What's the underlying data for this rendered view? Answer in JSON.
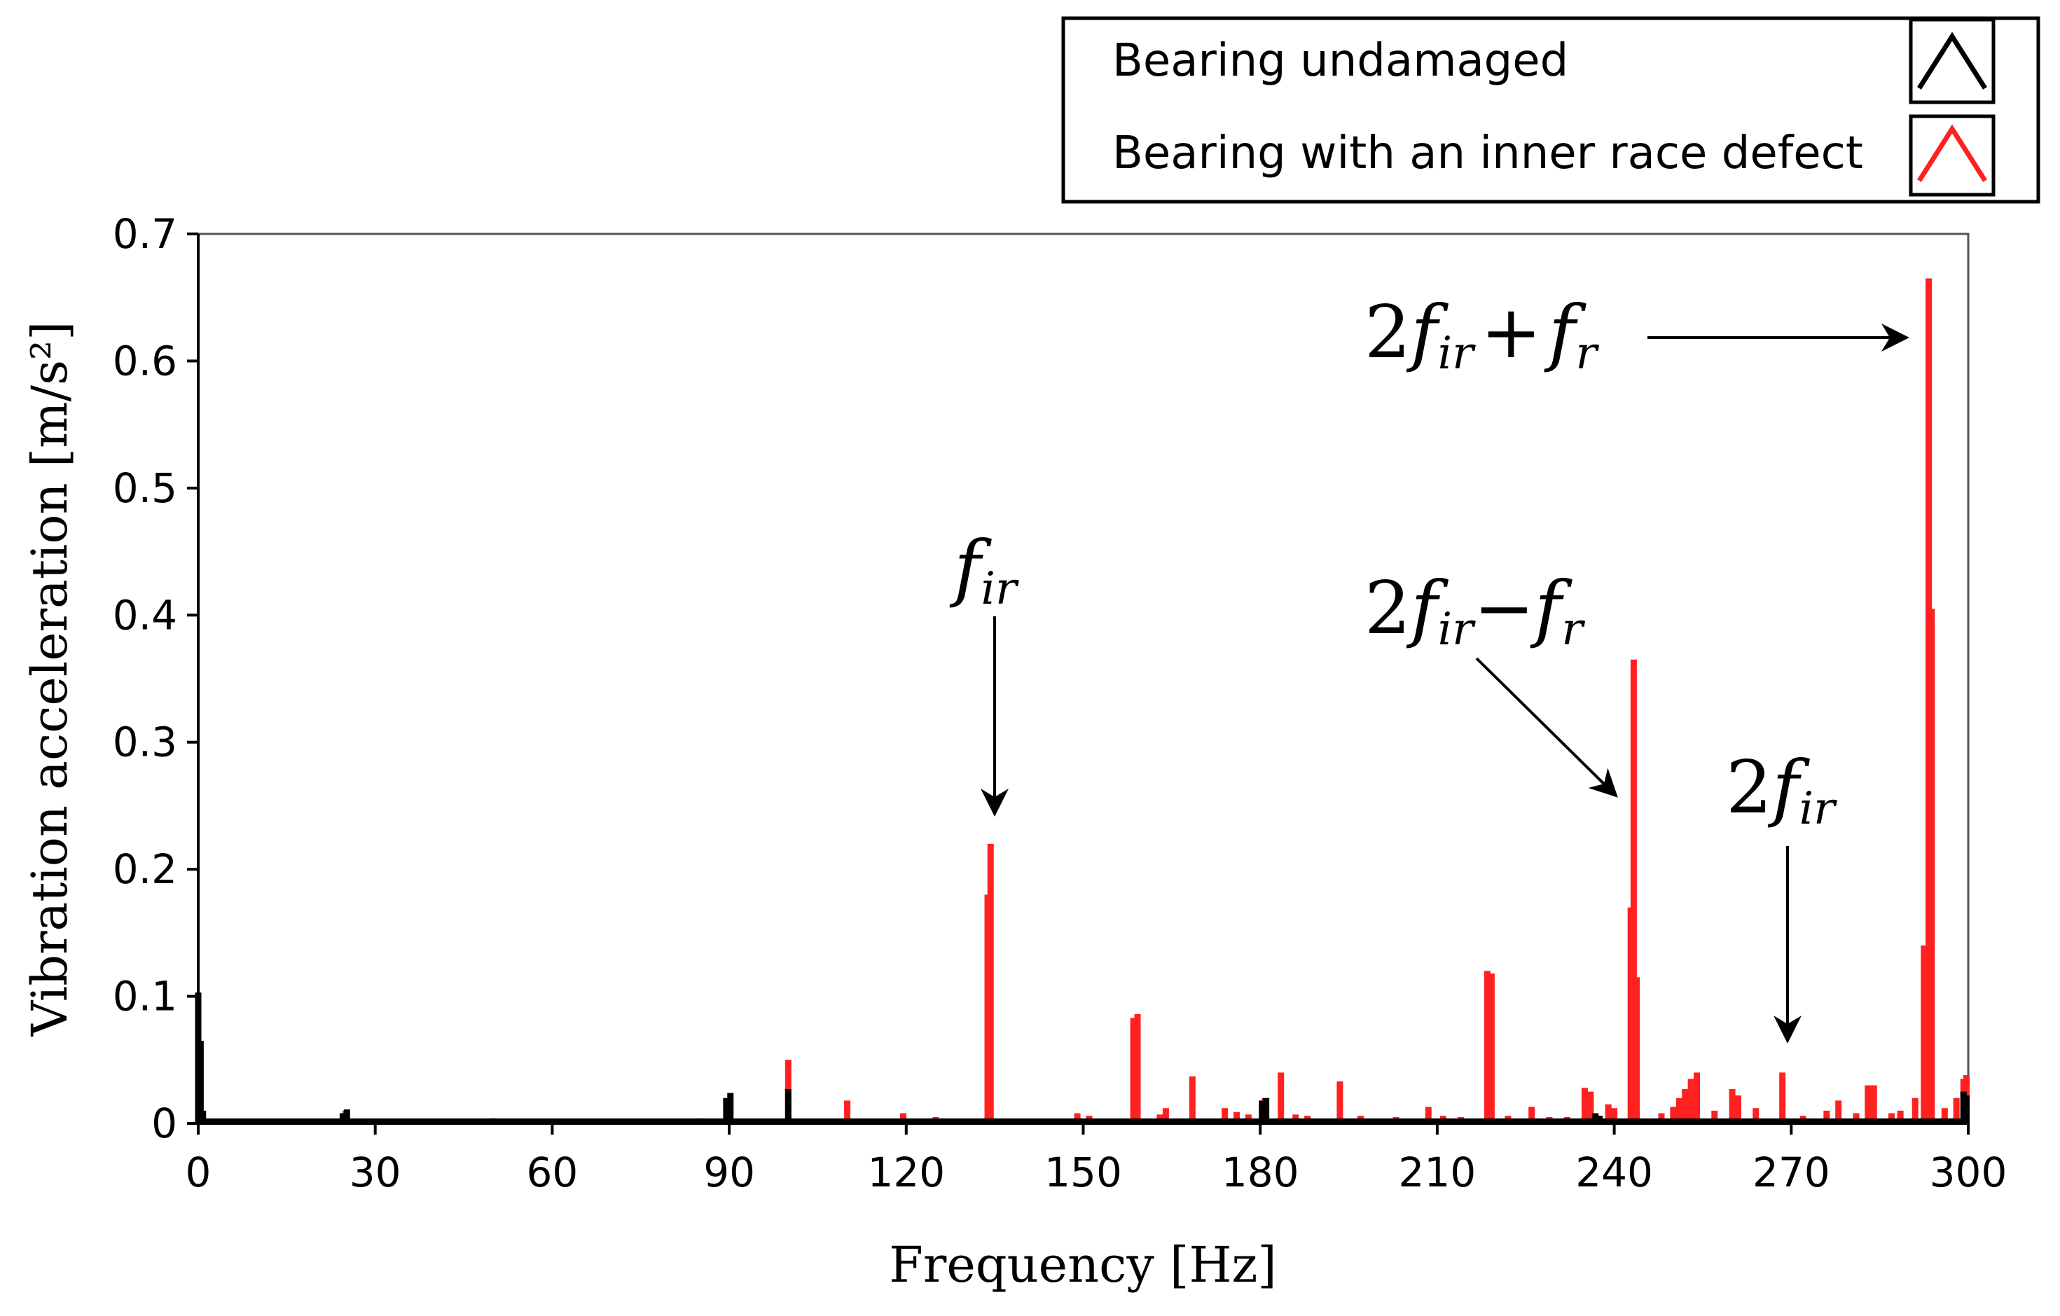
{
  "chart_data": {
    "type": "bar",
    "title": "",
    "xlabel": "Frequency [Hz]",
    "ylabel": "Vibration acceleration [m/s²]",
    "xlim": [
      0,
      300
    ],
    "ylim": [
      0,
      0.7
    ],
    "xticks": [
      "0",
      "30",
      "60",
      "90",
      "120",
      "150",
      "180",
      "210",
      "240",
      "270",
      "300"
    ],
    "yticks": [
      "0",
      "0.1",
      "0.2",
      "0.3",
      "0.4",
      "0.5",
      "0.6",
      "0.7"
    ],
    "grid": false,
    "legend_position": "top-right",
    "series": [
      {
        "name": "Bearing with an inner race defect",
        "color": "#ff2020",
        "points": [
          [
            0.0,
            0.1
          ],
          [
            0.3,
            0.065
          ],
          [
            25,
            0.01
          ],
          [
            85,
            0.004
          ],
          [
            90,
            0.02
          ],
          [
            100,
            0.05
          ],
          [
            110,
            0.018
          ],
          [
            119.5,
            0.008
          ],
          [
            125,
            0.005
          ],
          [
            133.8,
            0.18
          ],
          [
            134.3,
            0.22
          ],
          [
            149,
            0.008
          ],
          [
            151,
            0.006
          ],
          [
            158.5,
            0.083
          ],
          [
            159.2,
            0.086
          ],
          [
            163,
            0.007
          ],
          [
            164,
            0.012
          ],
          [
            168.5,
            0.037
          ],
          [
            174,
            0.012
          ],
          [
            176,
            0.009
          ],
          [
            178,
            0.007
          ],
          [
            180.8,
            0.02
          ],
          [
            183.5,
            0.04
          ],
          [
            186,
            0.007
          ],
          [
            188,
            0.006
          ],
          [
            193.5,
            0.033
          ],
          [
            197,
            0.006
          ],
          [
            203,
            0.005
          ],
          [
            208.5,
            0.013
          ],
          [
            211,
            0.006
          ],
          [
            214,
            0.005
          ],
          [
            218.5,
            0.12
          ],
          [
            219.2,
            0.118
          ],
          [
            222,
            0.006
          ],
          [
            226,
            0.013
          ],
          [
            229,
            0.005
          ],
          [
            232,
            0.005
          ],
          [
            235,
            0.028
          ],
          [
            236,
            0.025
          ],
          [
            239,
            0.015
          ],
          [
            240,
            0.012
          ],
          [
            242.8,
            0.17
          ],
          [
            243.3,
            0.365
          ],
          [
            243.8,
            0.115
          ],
          [
            248,
            0.008
          ],
          [
            250,
            0.013
          ],
          [
            251,
            0.02
          ],
          [
            252,
            0.027
          ],
          [
            253,
            0.035
          ],
          [
            254,
            0.04
          ],
          [
            257,
            0.01
          ],
          [
            260,
            0.027
          ],
          [
            261,
            0.022
          ],
          [
            264,
            0.012
          ],
          [
            268.5,
            0.04
          ],
          [
            272,
            0.006
          ],
          [
            276,
            0.01
          ],
          [
            278,
            0.018
          ],
          [
            281,
            0.008
          ],
          [
            283,
            0.03
          ],
          [
            284,
            0.03
          ],
          [
            287,
            0.008
          ],
          [
            288.5,
            0.01
          ],
          [
            291,
            0.02
          ],
          [
            292.5,
            0.14
          ],
          [
            293.3,
            0.665
          ],
          [
            293.8,
            0.405
          ],
          [
            296,
            0.012
          ],
          [
            298,
            0.02
          ],
          [
            299.2,
            0.035
          ],
          [
            299.7,
            0.038
          ]
        ]
      },
      {
        "name": "Bearing undamaged",
        "color": "#000000",
        "points": [
          [
            0.0,
            0.103
          ],
          [
            0.4,
            0.065
          ],
          [
            0.8,
            0.01
          ],
          [
            24.5,
            0.008
          ],
          [
            25.2,
            0.011
          ],
          [
            50,
            0.004
          ],
          [
            75,
            0.003
          ],
          [
            89.5,
            0.02
          ],
          [
            90.2,
            0.024
          ],
          [
            100,
            0.027
          ],
          [
            180.3,
            0.018
          ],
          [
            181,
            0.02
          ],
          [
            236.8,
            0.008
          ],
          [
            237.5,
            0.006
          ],
          [
            270,
            0.003
          ],
          [
            299.2,
            0.025
          ],
          [
            299.7,
            0.022
          ]
        ]
      }
    ],
    "baseline_value": 0.002,
    "annotations": [
      {
        "name": "fir",
        "coefficient": "",
        "terms": [
          [
            "f",
            "ir"
          ]
        ],
        "target_x": 134.3,
        "target_y": 0.22
      },
      {
        "name": "2fir-fr",
        "coefficient": "2",
        "terms": [
          [
            "f",
            "ir"
          ],
          [
            "−"
          ],
          [
            "f",
            "r"
          ]
        ],
        "target_x": 243.3,
        "target_y": 0.365
      },
      {
        "name": "2fir",
        "coefficient": "2",
        "terms": [
          [
            "f",
            "ir"
          ]
        ],
        "target_x": 268.5,
        "target_y": 0.04
      },
      {
        "name": "2fir+fr",
        "coefficient": "2",
        "terms": [
          [
            "f",
            "ir"
          ],
          [
            "+"
          ],
          [
            "f",
            "r"
          ]
        ],
        "target_x": 293.3,
        "target_y": 0.665
      }
    ]
  },
  "legend": {
    "items": [
      {
        "label": "Bearing undamaged",
        "color": "#000000"
      },
      {
        "label": "Bearing with an inner race defect",
        "color": "#ff2020"
      }
    ]
  }
}
